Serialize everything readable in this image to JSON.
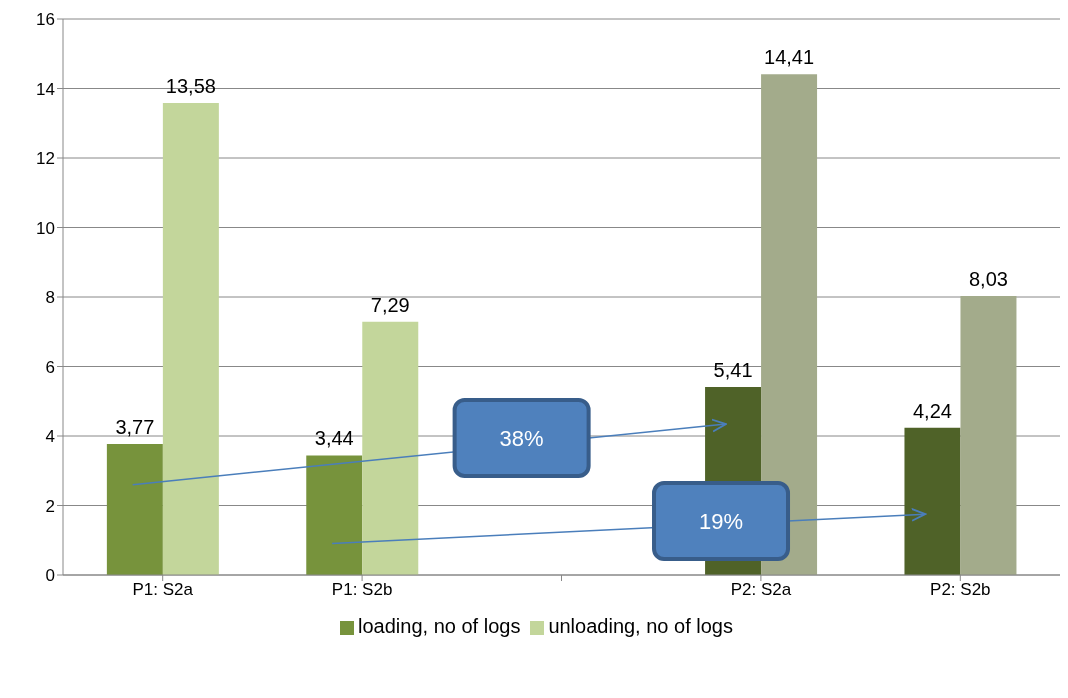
{
  "chart_data": {
    "type": "bar",
    "categories": [
      "P1: S2a",
      "P1: S2b",
      null,
      "P2: S2a",
      "P2: S2b"
    ],
    "series": [
      {
        "name": "loading, no of logs",
        "color": "#77933c",
        "colors": [
          "#77933c",
          "#77933c",
          null,
          "#4f6228",
          "#4f6228"
        ],
        "values": [
          3.77,
          3.44,
          null,
          5.41,
          4.24
        ],
        "value_labels": [
          "3,77",
          "3,44",
          null,
          "5,41",
          "4,24"
        ]
      },
      {
        "name": "unloading, no of logs",
        "color": "#c3d69b",
        "colors": [
          "#c3d69b",
          "#c3d69b",
          null,
          "#a3ab8b",
          "#a3ab8b"
        ],
        "values": [
          13.58,
          7.29,
          null,
          14.41,
          8.03
        ],
        "value_labels": [
          "13,58",
          "7,29",
          null,
          "14,41",
          "8,03"
        ]
      }
    ],
    "ylim": [
      0,
      16
    ],
    "yticks": [
      0,
      2,
      4,
      6,
      8,
      10,
      12,
      14,
      16
    ],
    "grid": "y",
    "legend": "bottom",
    "annotations": [
      "38%",
      "19%"
    ]
  }
}
